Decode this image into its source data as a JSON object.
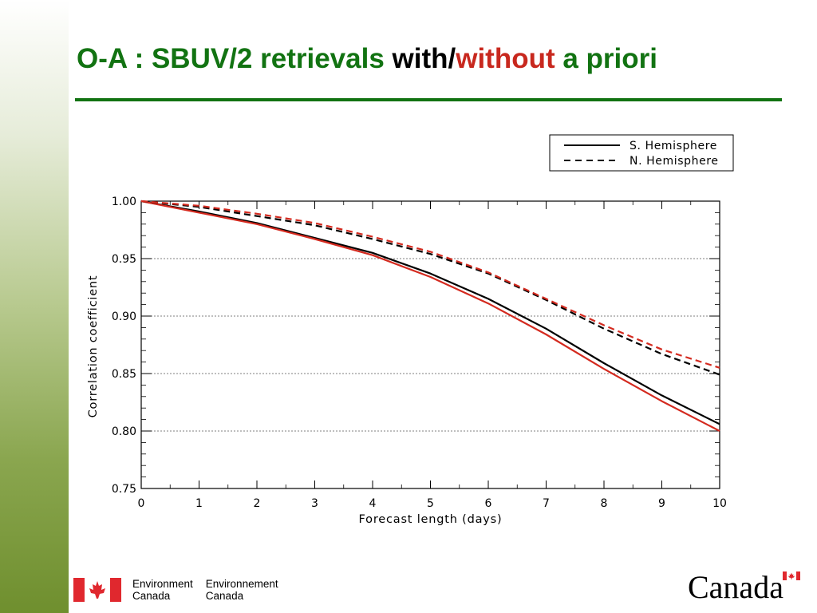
{
  "slide": {
    "title_part1": "O-A : SBUV/2 retrievals ",
    "title_part2": "with",
    "title_part3": "/",
    "title_part4": "without",
    "title_part5": " a priori",
    "colors": {
      "title_green": "#127312",
      "red_emphasis": "#c8281e"
    }
  },
  "footer": {
    "department_en": "Environment\nCanada",
    "department_fr": "Environnement\nCanada",
    "wordmark": "Canada",
    "flag_icon": "canada-flag-icon"
  },
  "chart_data": {
    "type": "line",
    "title": "",
    "xlabel": "Forecast length (days)",
    "ylabel": "Correlation coefficient",
    "xlim": [
      0,
      10
    ],
    "ylim": [
      0.75,
      1.0
    ],
    "xticks": [
      "0",
      "1",
      "2",
      "3",
      "4",
      "5",
      "6",
      "7",
      "8",
      "9",
      "10"
    ],
    "yticks": [
      "0.75",
      "0.80",
      "0.85",
      "0.90",
      "0.95",
      "1.00"
    ],
    "grid": "horizontal dotted at major y ticks",
    "legend_position": "above plot, top-right",
    "legend": [
      {
        "label": "S. Hemisphere",
        "style": "solid"
      },
      {
        "label": "N. Hemisphere",
        "style": "dashed"
      }
    ],
    "x": [
      0,
      1,
      2,
      3,
      4,
      5,
      6,
      7,
      8,
      9,
      10
    ],
    "series": [
      {
        "hemisphere": "S. Hemisphere",
        "variant": "with",
        "color": "#000000",
        "dash": false,
        "values": [
          1.0,
          0.991,
          0.981,
          0.968,
          0.955,
          0.937,
          0.915,
          0.889,
          0.859,
          0.831,
          0.806
        ]
      },
      {
        "hemisphere": "S. Hemisphere",
        "variant": "without",
        "color": "#d42a1f",
        "dash": false,
        "values": [
          1.0,
          0.99,
          0.98,
          0.967,
          0.953,
          0.934,
          0.911,
          0.884,
          0.854,
          0.826,
          0.8
        ]
      },
      {
        "hemisphere": "N. Hemisphere",
        "variant": "with",
        "color": "#000000",
        "dash": true,
        "values": [
          1.0,
          0.995,
          0.987,
          0.979,
          0.967,
          0.954,
          0.937,
          0.914,
          0.889,
          0.867,
          0.849
        ]
      },
      {
        "hemisphere": "N. Hemisphere",
        "variant": "without",
        "color": "#d42a1f",
        "dash": true,
        "values": [
          1.0,
          0.996,
          0.989,
          0.981,
          0.969,
          0.956,
          0.938,
          0.915,
          0.892,
          0.871,
          0.855
        ]
      }
    ]
  }
}
